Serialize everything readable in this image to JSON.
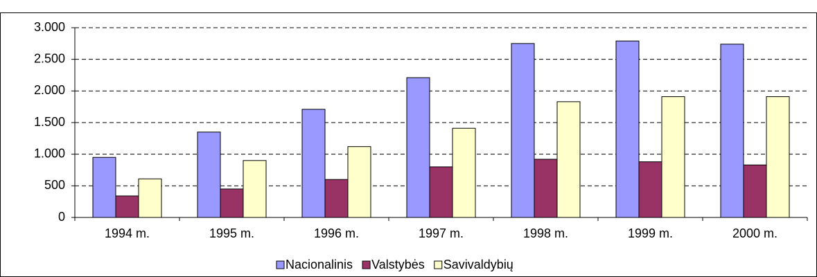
{
  "chart_data": {
    "type": "bar",
    "categories": [
      "1994 m.",
      "1995 m.",
      "1996 m.",
      "1997 m.",
      "1998 m.",
      "1999 m.",
      "2000 m."
    ],
    "series": [
      {
        "name": "Nacionalinis",
        "color": "#9999ff",
        "values": [
          950,
          1350,
          1710,
          2210,
          2750,
          2790,
          2740
        ]
      },
      {
        "name": "Valstybės",
        "color": "#993366",
        "values": [
          340,
          450,
          600,
          800,
          920,
          880,
          830
        ]
      },
      {
        "name": "Savivaldybių",
        "color": "#ffffcc",
        "values": [
          610,
          900,
          1120,
          1410,
          1830,
          1910,
          1910
        ]
      }
    ],
    "ylim": [
      0,
      3000
    ],
    "yticks": [
      0,
      500,
      {
        "value": 1000,
        "label": "1.000"
      },
      {
        "value": 1500,
        "label": "1.500"
      },
      {
        "value": 2000,
        "label": "2.000"
      },
      {
        "value": 2500,
        "label": "2.500"
      },
      {
        "value": 3000,
        "label": "3.000"
      }
    ],
    "grid": true,
    "legend": "bottom"
  }
}
